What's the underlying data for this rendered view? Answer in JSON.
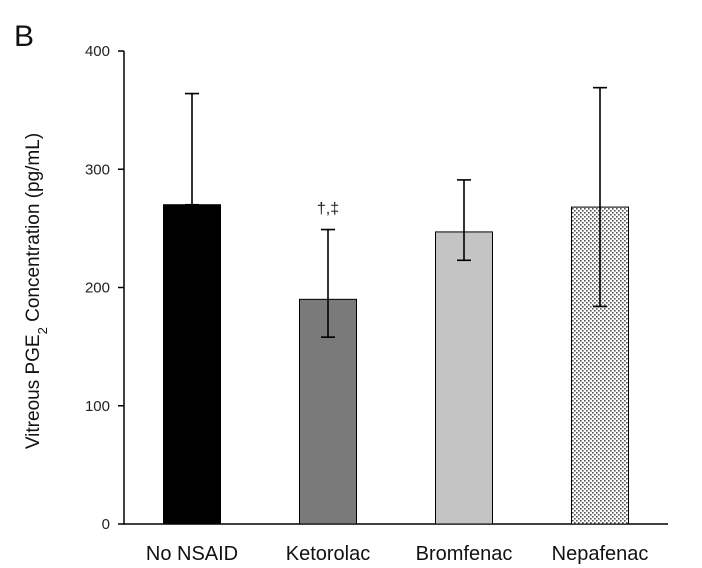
{
  "chart_data": {
    "type": "bar",
    "panel_label": "B",
    "title": "",
    "xlabel": "",
    "ylabel_prefix": "Vitreous PGE",
    "ylabel_subscript": "2",
    "ylabel_suffix": " Concentration (pg/mL)",
    "ylim": [
      0,
      400
    ],
    "yticks": [
      0,
      100,
      200,
      300,
      400
    ],
    "categories": [
      "No NSAID",
      "Ketorolac",
      "Bromfenac",
      "Nepafenac"
    ],
    "values": [
      270,
      190,
      247,
      268
    ],
    "error_upper": [
      364,
      249,
      291,
      369
    ],
    "error_lower": [
      270,
      158,
      223,
      184
    ],
    "bar_colors": [
      "#000000",
      "#7a7a7a",
      "#c4c4c4",
      "#ffffff"
    ],
    "bar_pattern": [
      "solid",
      "solid",
      "solid",
      "dotted"
    ],
    "annotations": [
      {
        "category": "Ketorolac",
        "text": "†,‡"
      }
    ],
    "grid": false
  }
}
